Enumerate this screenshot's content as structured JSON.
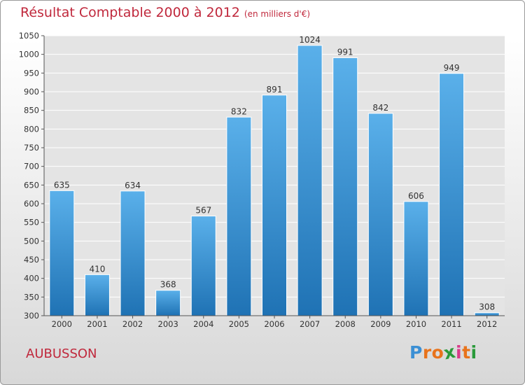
{
  "chart_data": {
    "type": "bar",
    "title": "Résultat Comptable 2000 à 2012",
    "subtitle": "(en milliers d'€)",
    "categories": [
      "2000",
      "2001",
      "2002",
      "2003",
      "2004",
      "2005",
      "2006",
      "2007",
      "2008",
      "2009",
      "2010",
      "2011",
      "2012"
    ],
    "values": [
      635,
      410,
      634,
      368,
      567,
      832,
      891,
      1024,
      991,
      842,
      606,
      949,
      308
    ],
    "ylim": [
      300,
      1050
    ],
    "yticks": [
      300,
      350,
      400,
      450,
      500,
      550,
      600,
      650,
      700,
      750,
      800,
      850,
      900,
      950,
      1000,
      1050
    ],
    "grid": true,
    "xlabel": "",
    "ylabel": ""
  },
  "place_name": "AUBUSSON",
  "logo": {
    "letters": [
      "P",
      "r",
      "o",
      "x",
      "i",
      "t",
      "i"
    ],
    "colors": [
      "#3b8fd4",
      "#e8731c",
      "#e8731c",
      "#2a9a3a",
      "#d93b8a",
      "#e8731c",
      "#2a9a3a"
    ]
  },
  "colors": {
    "title": "#c0283c",
    "bar_top": "#5ab0ea",
    "bar_bottom": "#1f72b4",
    "grid": "#ffffff",
    "axis": "#555555"
  }
}
